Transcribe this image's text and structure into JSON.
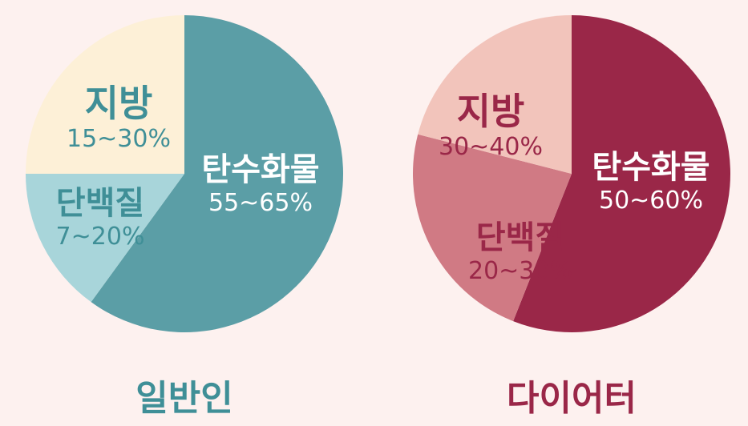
{
  "chart_data": [
    {
      "type": "pie",
      "title": "일반인",
      "slices": [
        {
          "label": "탄수화물",
          "range": "55~65%",
          "value": 60,
          "color": "#5b9ea6",
          "text_color": "#ffffff"
        },
        {
          "label": "단백질",
          "range": "7~20%",
          "value": 15,
          "color": "#a8d5da",
          "text_color": "#3f8f97"
        },
        {
          "label": "지방",
          "range": "15~30%",
          "value": 25,
          "color": "#fdf0d7",
          "text_color": "#3f8f97"
        }
      ],
      "title_color": "#3f8f97"
    },
    {
      "type": "pie",
      "title": "다이어터",
      "slices": [
        {
          "label": "탄수화물",
          "range": "50~60%",
          "value": 56,
          "color": "#9a2748",
          "text_color": "#ffffff"
        },
        {
          "label": "단백질",
          "range": "20~30%",
          "value": 23,
          "color": "#d07a84",
          "text_color": "#9a2748"
        },
        {
          "label": "지방",
          "range": "30~40%",
          "value": 21,
          "color": "#f2c4bb",
          "text_color": "#9a2748"
        }
      ],
      "title_color": "#9a2748"
    }
  ]
}
